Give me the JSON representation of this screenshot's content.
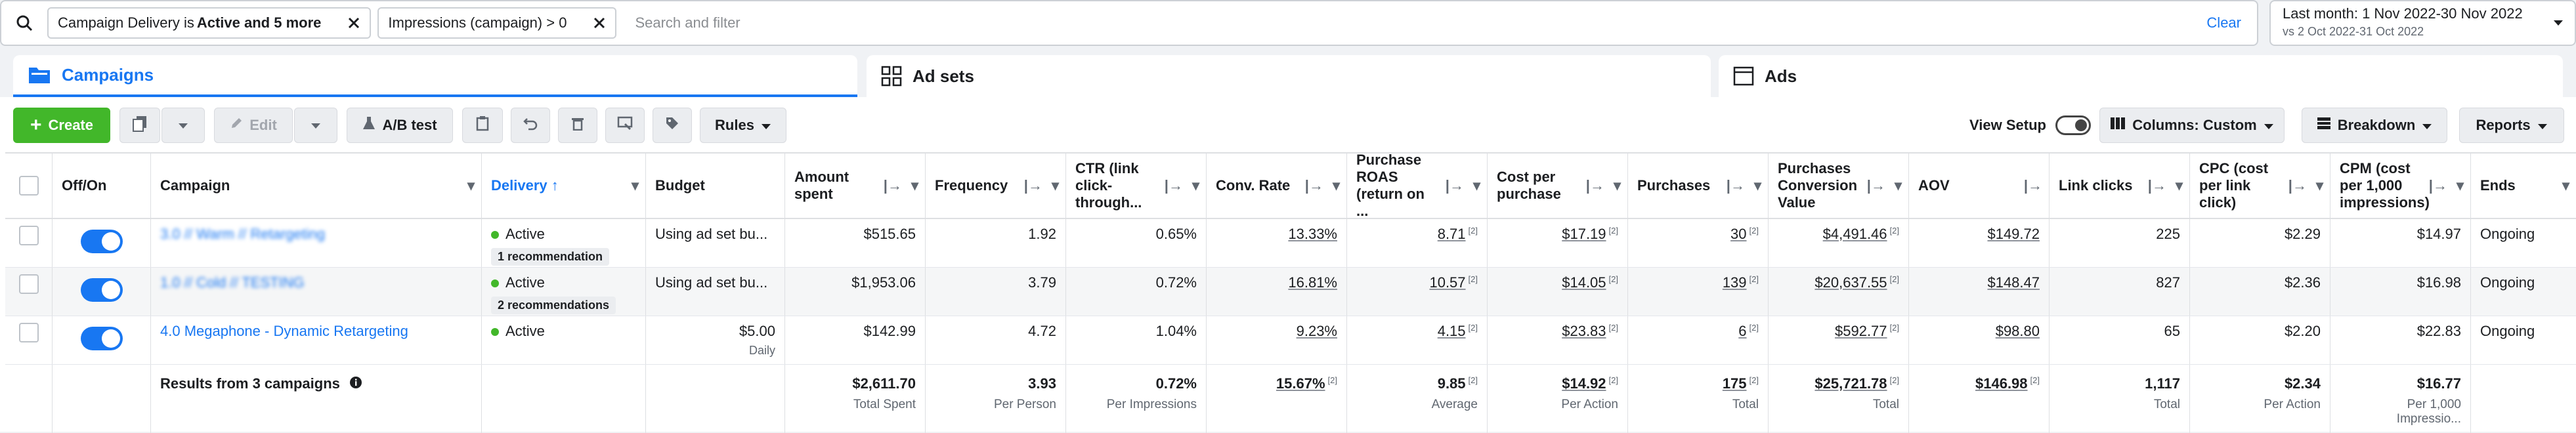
{
  "filters": {
    "chip1_prefix": "Campaign Delivery is ",
    "chip1_bold": "Active and 5 more",
    "chip2": "Impressions (campaign) > 0",
    "placeholder": "Search and filter",
    "clear": "Clear"
  },
  "date_range": {
    "primary": "Last month: 1 Nov 2022-30 Nov 2022",
    "compare": "vs 2 Oct 2022-31 Oct 2022"
  },
  "tabs": [
    {
      "label": "Campaigns",
      "icon": "folder-icon"
    },
    {
      "label": "Ad sets",
      "icon": "grid-icon"
    },
    {
      "label": "Ads",
      "icon": "ad-icon"
    }
  ],
  "toolbar": {
    "create": "Create",
    "edit": "Edit",
    "ab_test": "A/B test",
    "rules": "Rules",
    "view_setup": "View Setup",
    "columns": "Columns: Custom",
    "breakdown": "Breakdown",
    "reports": "Reports"
  },
  "columns": [
    "Off/On",
    "Campaign",
    "Delivery ↑",
    "Budget",
    "Amount spent",
    "Frequency",
    "CTR (link click-through...",
    "Conv. Rate",
    "Purchase ROAS (return on ...",
    "Cost per purchase",
    "Purchases",
    "Purchases Conversion Value",
    "AOV",
    "Link clicks",
    "CPC (cost per link click)",
    "CPM (cost per 1,000 impressions)",
    "Ends"
  ],
  "rows": [
    {
      "campaign": "3.0 // Warm // Retargeting",
      "status": "Active",
      "recommendation": "1 recommendation",
      "budget": "Using ad set bu...",
      "budget_sub": "",
      "amount_spent": "$515.65",
      "frequency": "1.92",
      "ctr": "0.65%",
      "conv_rate": "13.33%",
      "roas": "8.71",
      "cost_per_purchase": "$17.19",
      "purchases": "30",
      "conv_value": "$4,491.46",
      "aov": "$149.72",
      "link_clicks": "225",
      "cpc": "$2.29",
      "cpm": "$14.97",
      "ends": "Ongoing"
    },
    {
      "campaign": "1.0 // Cold // TESTING",
      "status": "Active",
      "recommendation": "2 recommendations",
      "budget": "Using ad set bu...",
      "budget_sub": "",
      "amount_spent": "$1,953.06",
      "frequency": "3.79",
      "ctr": "0.72%",
      "conv_rate": "16.81%",
      "roas": "10.57",
      "cost_per_purchase": "$14.05",
      "purchases": "139",
      "conv_value": "$20,637.55",
      "aov": "$148.47",
      "link_clicks": "827",
      "cpc": "$2.36",
      "cpm": "$16.98",
      "ends": "Ongoing"
    },
    {
      "campaign": "4.0 Megaphone - Dynamic Retargeting",
      "status": "Active",
      "recommendation": "",
      "budget": "$5.00",
      "budget_sub": "Daily",
      "amount_spent": "$142.99",
      "frequency": "4.72",
      "ctr": "1.04%",
      "conv_rate": "9.23%",
      "roas": "4.15",
      "cost_per_purchase": "$23.83",
      "purchases": "6",
      "conv_value": "$592.77",
      "aov": "$98.80",
      "link_clicks": "65",
      "cpc": "$2.20",
      "cpm": "$22.83",
      "ends": "Ongoing"
    }
  ],
  "footnote_marker": "[2]",
  "totals": {
    "label": "Results from 3 campaigns",
    "amount_spent": "$2,611.70",
    "amount_spent_sub": "Total Spent",
    "frequency": "3.93",
    "frequency_sub": "Per Person",
    "ctr": "0.72%",
    "ctr_sub": "Per Impressions",
    "conv_rate": "15.67%",
    "roas": "9.85",
    "roas_sub": "Average",
    "cost_per_purchase": "$14.92",
    "cost_per_purchase_sub": "Per Action",
    "purchases": "175",
    "purchases_sub": "Total",
    "conv_value": "$25,721.78",
    "conv_value_sub": "Total",
    "aov": "$146.98",
    "link_clicks": "1,117",
    "link_clicks_sub": "Total",
    "cpc": "$2.34",
    "cpc_sub": "Per Action",
    "cpm": "$16.77",
    "cpm_sub": "Per 1,000 Impressio..."
  },
  "colors": {
    "accent": "#1877f2",
    "create_green": "#42b72a",
    "active_dot": "#42b72a"
  }
}
